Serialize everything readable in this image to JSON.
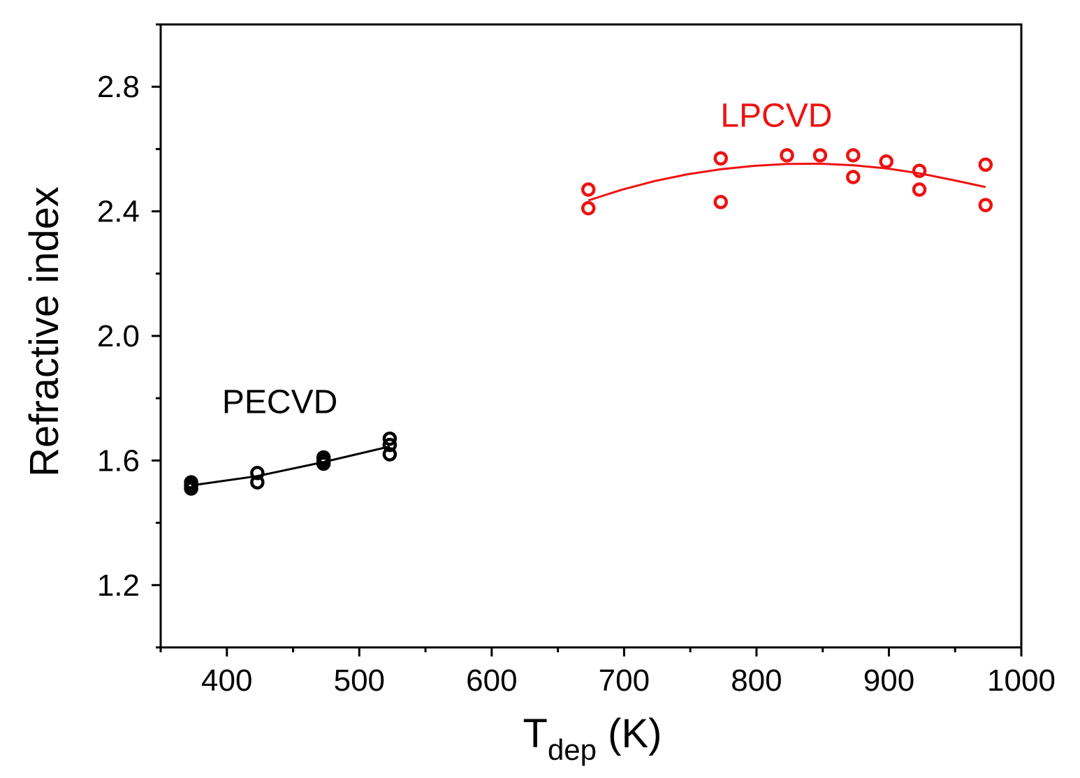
{
  "chart_data": {
    "type": "scatter",
    "title": "",
    "xlabel": {
      "main": "T",
      "sub": "dep",
      "unit": " (K)"
    },
    "ylabel": "Refractive index",
    "xlim": [
      350,
      1000
    ],
    "ylim": [
      1.0,
      3.0
    ],
    "xticks": [
      400,
      500,
      600,
      700,
      800,
      900,
      1000
    ],
    "xtick_labels": [
      "400",
      "500",
      "600",
      "700",
      "800",
      "900",
      "1000"
    ],
    "yticks": [
      1.2,
      1.6,
      2.0,
      2.4,
      2.8
    ],
    "ytick_labels": [
      "1.2",
      "1.6",
      "2.0",
      "2.4",
      "2.8"
    ],
    "grid": false,
    "series": [
      {
        "name": "PECVD",
        "color": "#000000",
        "x": [
          373,
          373,
          373,
          423,
          423,
          473,
          473,
          473,
          523,
          523,
          523
        ],
        "y": [
          1.53,
          1.51,
          1.52,
          1.56,
          1.53,
          1.61,
          1.59,
          1.6,
          1.67,
          1.62,
          1.65
        ],
        "fit": {
          "x": [
            373,
            423,
            473,
            523
          ],
          "y": [
            1.52,
            1.55,
            1.595,
            1.645
          ]
        }
      },
      {
        "name": "LPCVD",
        "color": "#ee1111",
        "x": [
          673,
          673,
          773,
          773,
          823,
          848,
          873,
          873,
          898,
          923,
          923,
          973,
          973
        ],
        "y": [
          2.47,
          2.41,
          2.57,
          2.43,
          2.58,
          2.58,
          2.58,
          2.51,
          2.56,
          2.53,
          2.47,
          2.55,
          2.42
        ],
        "fit": {
          "x": [
            673,
            698,
            723,
            748,
            773,
            798,
            823,
            848,
            873,
            898,
            923,
            948,
            973
          ],
          "y": [
            2.435,
            2.469,
            2.497,
            2.519,
            2.535,
            2.546,
            2.552,
            2.553,
            2.548,
            2.538,
            2.522,
            2.501,
            2.478
          ]
        }
      }
    ],
    "annotations": [
      {
        "text": "PECVD",
        "color": "#000000",
        "x": 440,
        "y": 1.79
      },
      {
        "text": "LPCVD",
        "color": "#ee1111",
        "x": 815,
        "y": 2.71
      }
    ]
  }
}
